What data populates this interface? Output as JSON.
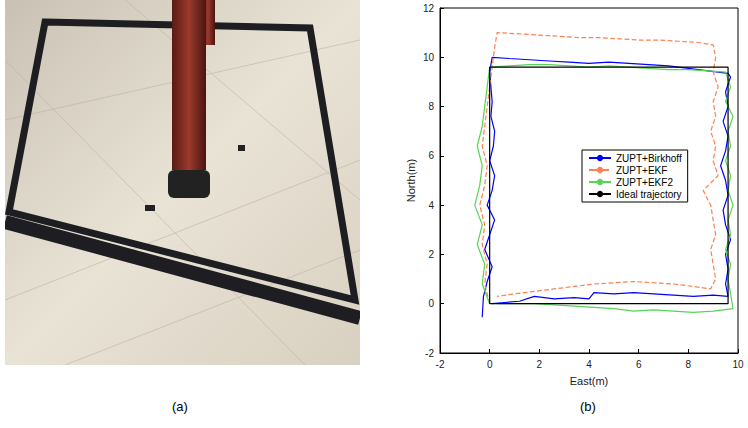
{
  "panel_labels": [
    "(a)",
    "(b)"
  ],
  "chart_data": {
    "type": "line",
    "x_label": "East(m)",
    "y_label": "North(m)",
    "xlim": [
      -2,
      10
    ],
    "xticks": [
      -2,
      0,
      2,
      4,
      6,
      8,
      10
    ],
    "ylim": [
      -2,
      12
    ],
    "yticks": [
      -2,
      0,
      2,
      4,
      6,
      8,
      10,
      12
    ],
    "grid": false,
    "legend": "center",
    "series": [
      {
        "name": "ZUPT+Birkhoff",
        "color": "#0000ff",
        "line_style": "solid",
        "values": [
          [
            -0.3,
            -0.55
          ],
          [
            -0.25,
            0.3
          ],
          [
            -0.1,
            0.9
          ],
          [
            0.1,
            1.5
          ],
          [
            -0.2,
            2.2
          ],
          [
            0.0,
            2.8
          ],
          [
            0.2,
            3.4
          ],
          [
            -0.1,
            4.0
          ],
          [
            0.1,
            4.6
          ],
          [
            0.2,
            5.2
          ],
          [
            0.0,
            5.8
          ],
          [
            0.15,
            6.4
          ],
          [
            0.2,
            7.0
          ],
          [
            0.05,
            7.6
          ],
          [
            0.1,
            8.2
          ],
          [
            0.05,
            8.8
          ],
          [
            0.0,
            9.4
          ],
          [
            0.1,
            10.0
          ],
          [
            0.8,
            9.95
          ],
          [
            1.6,
            9.9
          ],
          [
            2.4,
            9.85
          ],
          [
            3.2,
            9.8
          ],
          [
            4.0,
            9.75
          ],
          [
            4.8,
            9.8
          ],
          [
            5.6,
            9.75
          ],
          [
            6.4,
            9.7
          ],
          [
            7.2,
            9.65
          ],
          [
            8.0,
            9.55
          ],
          [
            8.8,
            9.45
          ],
          [
            9.6,
            9.35
          ],
          [
            9.7,
            9.2
          ],
          [
            9.5,
            8.6
          ],
          [
            9.6,
            8.0
          ],
          [
            9.4,
            7.4
          ],
          [
            9.6,
            6.8
          ],
          [
            9.5,
            6.2
          ],
          [
            9.3,
            5.6
          ],
          [
            9.5,
            5.0
          ],
          [
            9.6,
            4.4
          ],
          [
            9.4,
            3.8
          ],
          [
            9.5,
            3.2
          ],
          [
            9.7,
            2.6
          ],
          [
            9.5,
            2.0
          ],
          [
            9.6,
            1.4
          ],
          [
            9.5,
            0.8
          ],
          [
            9.6,
            0.3
          ],
          [
            9.0,
            0.35
          ],
          [
            8.2,
            0.3
          ],
          [
            7.4,
            0.35
          ],
          [
            6.6,
            0.4
          ],
          [
            5.8,
            0.45
          ],
          [
            5.0,
            0.4
          ],
          [
            4.2,
            0.45
          ],
          [
            4.0,
            0.2
          ],
          [
            3.4,
            0.25
          ],
          [
            2.6,
            0.2
          ],
          [
            1.8,
            0.3
          ],
          [
            1.2,
            0.1
          ],
          [
            0.6,
            0.05
          ],
          [
            0.1,
            0.0
          ]
        ]
      },
      {
        "name": "ZUPT+EKF",
        "color": "#ff7f50",
        "line_style": "dashed",
        "values": [
          [
            0.0,
            0.0
          ],
          [
            -0.2,
            0.8
          ],
          [
            -0.1,
            1.6
          ],
          [
            -0.3,
            2.4
          ],
          [
            -0.2,
            3.2
          ],
          [
            -0.4,
            4.0
          ],
          [
            -0.2,
            4.8
          ],
          [
            -0.1,
            5.6
          ],
          [
            -0.3,
            6.4
          ],
          [
            -0.2,
            7.2
          ],
          [
            -0.1,
            8.0
          ],
          [
            0.0,
            8.8
          ],
          [
            0.1,
            9.6
          ],
          [
            0.2,
            10.4
          ],
          [
            0.3,
            11.0
          ],
          [
            1.2,
            10.95
          ],
          [
            2.0,
            10.9
          ],
          [
            2.8,
            10.85
          ],
          [
            3.6,
            10.8
          ],
          [
            4.4,
            10.8
          ],
          [
            5.2,
            10.75
          ],
          [
            6.0,
            10.7
          ],
          [
            6.8,
            10.7
          ],
          [
            7.6,
            10.65
          ],
          [
            8.4,
            10.6
          ],
          [
            9.0,
            10.5
          ],
          [
            9.1,
            10.0
          ],
          [
            9.0,
            9.4
          ],
          [
            9.2,
            8.8
          ],
          [
            9.0,
            8.2
          ],
          [
            9.1,
            7.6
          ],
          [
            8.9,
            7.0
          ],
          [
            9.1,
            6.4
          ],
          [
            9.0,
            5.8
          ],
          [
            9.2,
            5.2
          ],
          [
            8.6,
            4.6
          ],
          [
            8.9,
            4.0
          ],
          [
            9.0,
            3.4
          ],
          [
            9.1,
            2.8
          ],
          [
            8.9,
            2.2
          ],
          [
            9.0,
            1.6
          ],
          [
            9.1,
            1.0
          ],
          [
            8.9,
            0.6
          ],
          [
            8.2,
            0.7
          ],
          [
            7.4,
            0.8
          ],
          [
            6.6,
            0.85
          ],
          [
            5.8,
            0.9
          ],
          [
            5.0,
            0.85
          ],
          [
            4.2,
            0.8
          ],
          [
            3.4,
            0.7
          ],
          [
            2.6,
            0.6
          ],
          [
            1.8,
            0.5
          ],
          [
            1.0,
            0.4
          ],
          [
            0.3,
            0.3
          ]
        ]
      },
      {
        "name": "ZUPT+EKF2",
        "color": "#55d455",
        "line_style": "solid",
        "values": [
          [
            0.0,
            0.0
          ],
          [
            -0.3,
            0.8
          ],
          [
            -0.2,
            1.6
          ],
          [
            -0.5,
            2.4
          ],
          [
            -0.3,
            3.2
          ],
          [
            -0.6,
            4.0
          ],
          [
            -0.4,
            4.8
          ],
          [
            -0.3,
            5.6
          ],
          [
            -0.5,
            6.4
          ],
          [
            -0.3,
            7.2
          ],
          [
            -0.2,
            8.0
          ],
          [
            -0.1,
            8.8
          ],
          [
            0.0,
            9.6
          ],
          [
            0.8,
            9.65
          ],
          [
            1.6,
            9.7
          ],
          [
            2.4,
            9.7
          ],
          [
            3.2,
            9.65
          ],
          [
            4.0,
            9.6
          ],
          [
            4.8,
            9.65
          ],
          [
            5.6,
            9.6
          ],
          [
            6.4,
            9.55
          ],
          [
            7.2,
            9.5
          ],
          [
            8.0,
            9.5
          ],
          [
            8.8,
            9.45
          ],
          [
            9.5,
            9.4
          ],
          [
            9.7,
            8.8
          ],
          [
            9.5,
            8.2
          ],
          [
            9.8,
            7.6
          ],
          [
            9.6,
            7.0
          ],
          [
            9.7,
            6.4
          ],
          [
            9.5,
            5.8
          ],
          [
            9.7,
            5.2
          ],
          [
            9.6,
            4.6
          ],
          [
            9.8,
            4.0
          ],
          [
            9.6,
            3.4
          ],
          [
            9.7,
            2.8
          ],
          [
            9.5,
            2.2
          ],
          [
            9.7,
            1.6
          ],
          [
            9.6,
            1.0
          ],
          [
            9.7,
            0.4
          ],
          [
            9.8,
            -0.2
          ],
          [
            9.0,
            -0.3
          ],
          [
            8.2,
            -0.35
          ],
          [
            7.4,
            -0.3
          ],
          [
            6.6,
            -0.25
          ],
          [
            5.8,
            -0.3
          ],
          [
            5.0,
            -0.2
          ],
          [
            4.2,
            -0.15
          ],
          [
            3.4,
            -0.1
          ],
          [
            2.6,
            -0.05
          ],
          [
            1.8,
            0.0
          ],
          [
            1.0,
            0.0
          ],
          [
            0.3,
            0.0
          ]
        ]
      },
      {
        "name": "Ideal trajectory",
        "color": "#000000",
        "line_style": "solid",
        "values": [
          [
            0,
            0
          ],
          [
            9.6,
            0
          ],
          [
            9.6,
            9.6
          ],
          [
            0,
            9.6
          ],
          [
            0,
            0
          ]
        ]
      }
    ]
  }
}
